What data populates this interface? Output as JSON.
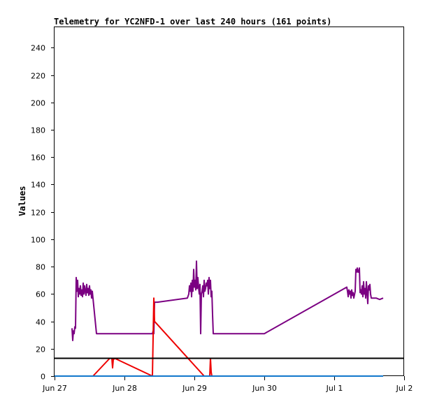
{
  "chart_data": {
    "type": "line",
    "title": "Telemetry for YC2NFD-1 over last 240 hours (161 points)",
    "xlabel": "",
    "ylabel": "Values",
    "x_ticks": [
      "Jun 27",
      "Jun 28",
      "Jun 29",
      "Jun 30",
      "Jul 1",
      "Jul 2"
    ],
    "x_range_days": [
      0,
      5
    ],
    "ylim": [
      0,
      255
    ],
    "y_ticks": [
      0,
      20,
      40,
      60,
      80,
      100,
      120,
      140,
      160,
      180,
      200,
      220,
      240
    ],
    "grid": false,
    "legend": "none",
    "series": [
      {
        "color": "#7b0082",
        "points": [
          [
            0.25,
            35
          ],
          [
            0.26,
            26
          ],
          [
            0.27,
            33
          ],
          [
            0.28,
            31
          ],
          [
            0.29,
            36
          ],
          [
            0.3,
            35
          ],
          [
            0.31,
            72
          ],
          [
            0.32,
            62
          ],
          [
            0.33,
            70
          ],
          [
            0.34,
            58
          ],
          [
            0.35,
            64
          ],
          [
            0.36,
            60
          ],
          [
            0.37,
            66
          ],
          [
            0.38,
            59
          ],
          [
            0.39,
            63
          ],
          [
            0.4,
            58
          ],
          [
            0.41,
            68
          ],
          [
            0.42,
            60
          ],
          [
            0.43,
            66
          ],
          [
            0.44,
            62
          ],
          [
            0.45,
            59
          ],
          [
            0.46,
            67
          ],
          [
            0.47,
            61
          ],
          [
            0.48,
            64
          ],
          [
            0.49,
            59
          ],
          [
            0.5,
            66
          ],
          [
            0.51,
            60
          ],
          [
            0.52,
            63
          ],
          [
            0.53,
            57
          ],
          [
            0.54,
            62
          ],
          [
            0.6,
            31
          ],
          [
            1.4,
            31
          ],
          [
            1.41,
            33
          ],
          [
            1.42,
            31
          ],
          [
            1.43,
            54
          ],
          [
            1.44,
            54
          ],
          [
            1.45,
            54
          ],
          [
            1.46,
            54
          ],
          [
            1.47,
            54
          ],
          [
            1.9,
            57
          ],
          [
            1.92,
            60
          ],
          [
            1.93,
            66
          ],
          [
            1.94,
            62
          ],
          [
            1.95,
            68
          ],
          [
            1.96,
            58
          ],
          [
            1.97,
            70
          ],
          [
            1.98,
            62
          ],
          [
            1.99,
            78
          ],
          [
            2.0,
            65
          ],
          [
            2.01,
            70
          ],
          [
            2.02,
            63
          ],
          [
            2.03,
            84
          ],
          [
            2.04,
            64
          ],
          [
            2.05,
            72
          ],
          [
            2.06,
            65
          ],
          [
            2.07,
            60
          ],
          [
            2.08,
            67
          ],
          [
            2.09,
            31
          ],
          [
            2.1,
            60
          ],
          [
            2.11,
            62
          ],
          [
            2.12,
            66
          ],
          [
            2.13,
            58
          ],
          [
            2.14,
            70
          ],
          [
            2.15,
            62
          ],
          [
            2.16,
            64
          ],
          [
            2.17,
            68
          ],
          [
            2.18,
            66
          ],
          [
            2.19,
            70
          ],
          [
            2.2,
            60
          ],
          [
            2.21,
            72
          ],
          [
            2.22,
            64
          ],
          [
            2.23,
            70
          ],
          [
            2.24,
            58
          ],
          [
            2.25,
            62
          ],
          [
            2.26,
            45
          ],
          [
            2.27,
            31
          ],
          [
            3.0,
            31
          ],
          [
            4.18,
            65
          ],
          [
            4.19,
            62
          ],
          [
            4.2,
            58
          ],
          [
            4.21,
            63
          ],
          [
            4.22,
            60
          ],
          [
            4.23,
            62
          ],
          [
            4.24,
            57
          ],
          [
            4.25,
            63
          ],
          [
            4.26,
            59
          ],
          [
            4.27,
            61
          ],
          [
            4.28,
            57
          ],
          [
            4.3,
            62
          ],
          [
            4.31,
            78
          ],
          [
            4.32,
            76
          ],
          [
            4.33,
            79
          ],
          [
            4.34,
            76
          ],
          [
            4.35,
            76
          ],
          [
            4.36,
            79
          ],
          [
            4.37,
            61
          ],
          [
            4.38,
            63
          ],
          [
            4.39,
            60
          ],
          [
            4.4,
            66
          ],
          [
            4.41,
            58
          ],
          [
            4.42,
            69
          ],
          [
            4.43,
            60
          ],
          [
            4.44,
            64
          ],
          [
            4.45,
            57
          ],
          [
            4.46,
            69
          ],
          [
            4.47,
            61
          ],
          [
            4.48,
            53
          ],
          [
            4.49,
            66
          ],
          [
            4.5,
            63
          ],
          [
            4.51,
            67
          ],
          [
            4.52,
            60
          ],
          [
            4.53,
            57
          ],
          [
            4.55,
            57
          ],
          [
            4.6,
            57
          ],
          [
            4.65,
            56
          ],
          [
            4.7,
            57
          ]
        ]
      },
      {
        "color": "#ee0000",
        "points": [
          [
            0.55,
            0
          ],
          [
            0.79,
            13
          ],
          [
            0.82,
            13
          ],
          [
            0.83,
            6
          ],
          [
            0.84,
            12
          ],
          [
            0.86,
            13
          ],
          [
            1.4,
            0
          ],
          [
            1.42,
            57
          ],
          [
            1.43,
            40
          ],
          [
            2.14,
            0
          ],
          [
            2.22,
            0
          ],
          [
            2.23,
            13
          ],
          [
            2.24,
            3
          ],
          [
            2.25,
            0
          ]
        ]
      },
      {
        "color": "#000000",
        "points": [
          [
            0.0,
            13
          ],
          [
            5.0,
            13
          ]
        ]
      },
      {
        "color": "#1177cc",
        "points": [
          [
            0.0,
            0
          ],
          [
            4.7,
            0
          ]
        ]
      }
    ]
  }
}
